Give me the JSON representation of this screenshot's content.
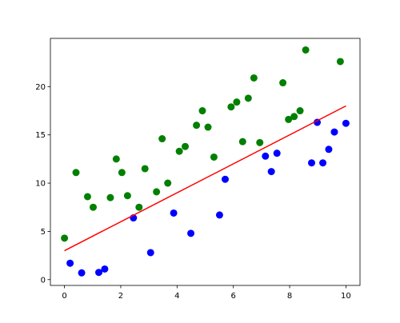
{
  "chart_data": {
    "type": "scatter",
    "series": [
      {
        "color": "#008000",
        "x": [
          0,
          0.41,
          0.82,
          1.02,
          1.63,
          1.84,
          2.04,
          2.24,
          2.65,
          2.86,
          3.27,
          3.47,
          3.67,
          4.08,
          4.29,
          4.69,
          4.9,
          5.1,
          5.31,
          5.92,
          6.12,
          6.33,
          6.53,
          6.73,
          6.94,
          7.76,
          7.96,
          8.16,
          8.37,
          8.57,
          9.8
        ],
        "values": [
          4.3,
          11.1,
          8.6,
          7.5,
          8.5,
          12.5,
          11.1,
          8.7,
          7.5,
          11.5,
          9.1,
          14.6,
          10.0,
          13.3,
          13.8,
          16.0,
          17.5,
          15.8,
          12.7,
          17.9,
          18.4,
          14.3,
          18.8,
          20.9,
          14.2,
          20.4,
          16.6,
          16.9,
          17.5,
          23.8,
          22.6
        ]
      },
      {
        "color": "#0000ff",
        "x": [
          0.2,
          0.61,
          1.22,
          1.43,
          2.45,
          3.06,
          3.88,
          4.49,
          5.51,
          5.71,
          7.14,
          7.35,
          7.55,
          8.78,
          8.98,
          9.18,
          9.39,
          9.59,
          10
        ],
        "values": [
          1.7,
          0.7,
          0.75,
          1.1,
          6.4,
          2.8,
          6.9,
          4.8,
          6.7,
          10.4,
          12.8,
          11.2,
          13.1,
          12.1,
          16.3,
          12.1,
          13.5,
          15.3,
          16.2
        ]
      }
    ],
    "lines": [
      {
        "color": "#ff0000",
        "x": [
          0,
          10
        ],
        "values": [
          3,
          18
        ]
      }
    ],
    "xlim": [
      -0.5,
      10.5
    ],
    "ylim": [
      -0.6,
      25
    ],
    "xticks": [
      0,
      2,
      4,
      6,
      8,
      10
    ],
    "yticks": [
      0,
      5,
      10,
      15,
      20
    ]
  }
}
